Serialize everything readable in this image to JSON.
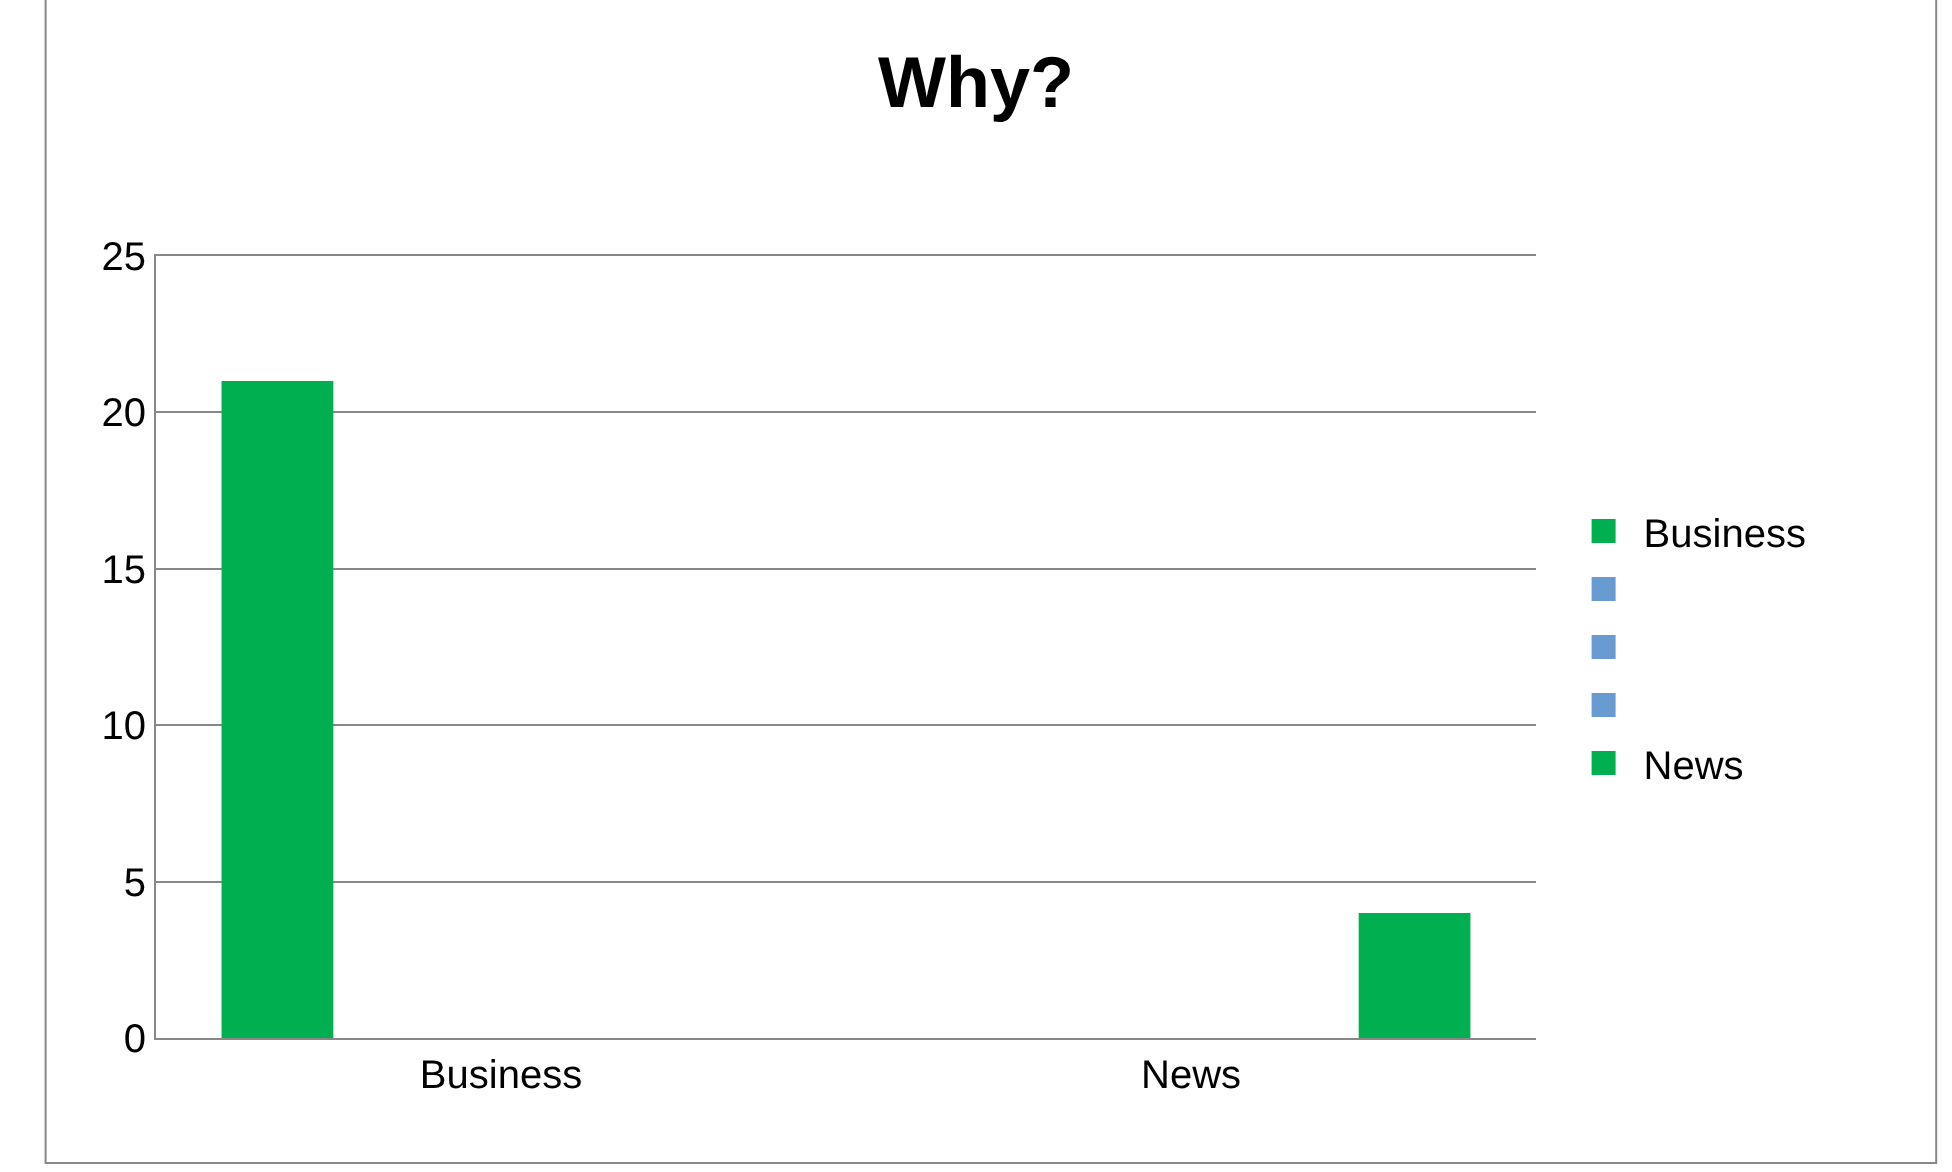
{
  "chart_data": {
    "type": "bar",
    "title": "Why?",
    "categories": [
      "Business",
      "News"
    ],
    "series": [
      {
        "name": "Business",
        "color": "#00b050",
        "values": [
          21,
          null
        ]
      },
      {
        "color": "#6a9bd0",
        "values": [
          null,
          null
        ]
      },
      {
        "color": "#6a9bd0",
        "values": [
          null,
          null
        ]
      },
      {
        "color": "#6a9bd0",
        "values": [
          null,
          null
        ]
      },
      {
        "name": "News",
        "color": "#00b050",
        "values": [
          null,
          4
        ]
      }
    ],
    "ylim": [
      0,
      25
    ],
    "yticks": [
      0,
      5,
      10,
      15,
      20,
      25
    ],
    "grid": "y",
    "legend": "right"
  }
}
